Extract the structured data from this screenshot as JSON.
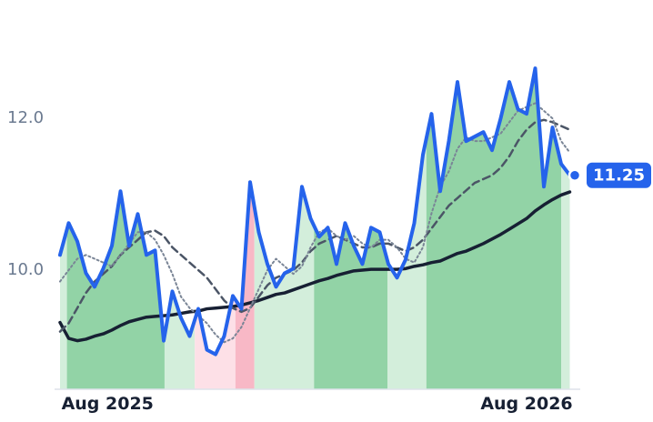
{
  "chart_data": {
    "type": "line",
    "x": [
      0,
      1,
      2,
      3,
      4,
      5,
      6,
      7,
      8,
      9,
      10,
      11,
      12,
      13,
      14,
      15,
      16,
      17,
      18,
      19,
      20,
      21,
      22,
      23,
      24,
      25,
      26,
      27,
      28,
      29,
      30,
      31,
      32,
      33,
      34,
      35,
      36,
      37,
      38,
      39,
      40,
      41,
      42,
      43,
      44,
      45,
      46,
      47,
      48,
      49,
      50,
      51,
      52,
      53,
      54,
      55,
      56,
      57,
      58,
      59
    ],
    "xlim": [
      0,
      59
    ],
    "xticks": [
      {
        "value": 5.5,
        "label": "Aug 2025"
      },
      {
        "value": 54,
        "label": "Aug 2026"
      }
    ],
    "ylim": [
      8.43,
      13.56
    ],
    "yticks": [
      {
        "value": 10,
        "label": "10.0"
      },
      {
        "value": 12,
        "label": "12.0"
      }
    ],
    "regions": [
      {
        "start": 0,
        "end": 0.8,
        "color": "#d3eedb"
      },
      {
        "start": 0.8,
        "end": 12.1,
        "color": "#92d3a6"
      },
      {
        "start": 12.1,
        "end": 15.6,
        "color": "#d3eedb"
      },
      {
        "start": 15.6,
        "end": 20.3,
        "color": "#fde0e7"
      },
      {
        "start": 20.3,
        "end": 22.5,
        "color": "#f8b8c6"
      },
      {
        "start": 22.5,
        "end": 29.4,
        "color": "#d3eedb"
      },
      {
        "start": 29.4,
        "end": 37.9,
        "color": "#92d3a6"
      },
      {
        "start": 37.9,
        "end": 42.4,
        "color": "#d3eedb"
      },
      {
        "start": 42.4,
        "end": 58,
        "color": "#92d3a6"
      },
      {
        "start": 58,
        "end": 59,
        "color": "#d3eedb"
      }
    ],
    "series": [
      {
        "color": "#2563eb",
        "width": 4,
        "dash": "none",
        "values": [
          10.2,
          10.62,
          10.38,
          9.96,
          9.78,
          10.02,
          10.32,
          11.04,
          10.32,
          10.74,
          10.2,
          10.26,
          9.07,
          9.72,
          9.37,
          9.13,
          9.49,
          8.95,
          8.89,
          9.13,
          9.66,
          9.49,
          11.16,
          10.5,
          10.08,
          9.78,
          9.96,
          10.02,
          11.1,
          10.68,
          10.44,
          10.56,
          10.08,
          10.62,
          10.32,
          10.08,
          10.56,
          10.5,
          10.08,
          9.9,
          10.14,
          10.62,
          11.52,
          12.06,
          11.04,
          11.7,
          12.48,
          11.7,
          11.76,
          11.82,
          11.58,
          12.0,
          12.48,
          12.12,
          12.06,
          12.66,
          11.1,
          11.88,
          11.4,
          11.25
        ]
      },
      {
        "color": "#7a8596",
        "width": 2,
        "dash": "2 3",
        "values": [
          9.85,
          10.0,
          10.15,
          10.2,
          10.15,
          10.1,
          10.05,
          10.2,
          10.35,
          10.5,
          10.5,
          10.4,
          10.2,
          9.95,
          9.65,
          9.5,
          9.4,
          9.3,
          9.15,
          9.05,
          9.1,
          9.25,
          9.5,
          9.75,
          10.0,
          10.15,
          10.05,
          9.95,
          10.05,
          10.3,
          10.5,
          10.55,
          10.45,
          10.4,
          10.45,
          10.35,
          10.3,
          10.4,
          10.4,
          10.3,
          10.15,
          10.1,
          10.3,
          10.75,
          11.1,
          11.3,
          11.6,
          11.75,
          11.7,
          11.7,
          11.75,
          11.8,
          11.95,
          12.1,
          12.15,
          12.2,
          12.1,
          12.0,
          11.7,
          11.55
        ]
      },
      {
        "color": "#4b5566",
        "width": 2.5,
        "dash": "8 5",
        "values": [
          9.19,
          9.3,
          9.5,
          9.7,
          9.85,
          9.95,
          10.05,
          10.2,
          10.3,
          10.4,
          10.5,
          10.52,
          10.45,
          10.3,
          10.2,
          10.1,
          10.0,
          9.9,
          9.75,
          9.6,
          9.5,
          9.45,
          9.5,
          9.65,
          9.8,
          9.9,
          9.95,
          10.0,
          10.1,
          10.25,
          10.35,
          10.4,
          10.45,
          10.4,
          10.35,
          10.3,
          10.3,
          10.35,
          10.35,
          10.3,
          10.25,
          10.3,
          10.4,
          10.55,
          10.7,
          10.85,
          10.95,
          11.05,
          11.15,
          11.2,
          11.25,
          11.35,
          11.5,
          11.7,
          11.85,
          11.95,
          11.98,
          11.95,
          11.9,
          11.85
        ]
      },
      {
        "color": "#172033",
        "width": 3.5,
        "dash": "none",
        "values": [
          9.31,
          9.1,
          9.07,
          9.09,
          9.13,
          9.16,
          9.21,
          9.27,
          9.32,
          9.35,
          9.38,
          9.39,
          9.4,
          9.41,
          9.43,
          9.45,
          9.46,
          9.49,
          9.5,
          9.51,
          9.52,
          9.54,
          9.57,
          9.6,
          9.64,
          9.68,
          9.7,
          9.74,
          9.78,
          9.82,
          9.86,
          9.89,
          9.93,
          9.96,
          9.99,
          10.0,
          10.01,
          10.01,
          10.01,
          10.01,
          10.02,
          10.05,
          10.07,
          10.1,
          10.12,
          10.17,
          10.22,
          10.25,
          10.3,
          10.35,
          10.41,
          10.47,
          10.54,
          10.61,
          10.68,
          10.78,
          10.86,
          10.93,
          10.99,
          11.03
        ]
      }
    ]
  }
}
